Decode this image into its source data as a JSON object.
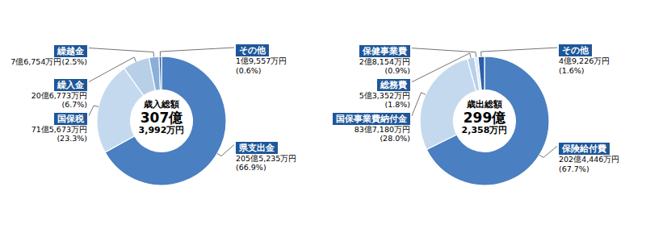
{
  "chart_data": [
    {
      "type": "donut",
      "title": [
        "歳入総額",
        "307億",
        "3,992万円"
      ],
      "categories": [
        "県支出金",
        "国保税",
        "繰入金",
        "繰越金",
        "その他"
      ],
      "values": [
        66.9,
        23.3,
        6.7,
        2.5,
        0.6
      ],
      "colors": [
        "#4a7fc1",
        "#c5d9ee",
        "#b8cfe8",
        "#8aafd8",
        "#2a5ea8"
      ],
      "value_labels": [
        [
          "205億5,235万円",
          "(66.9%)"
        ],
        [
          "71億5,673万円",
          "(23.3%)"
        ],
        [
          "20億6,773万円",
          "(6.7%)"
        ],
        [
          "7億6,754万円(2.5%)"
        ],
        [
          "1億9,557万円",
          "(0.6%)"
        ]
      ]
    },
    {
      "type": "donut",
      "title": [
        "歳出総額",
        "299億",
        "2,358万円"
      ],
      "categories": [
        "保険給付費",
        "国保事業費納付金",
        "総務費",
        "保健事業費",
        "その他"
      ],
      "values": [
        67.7,
        28.0,
        1.8,
        0.9,
        1.6
      ],
      "colors": [
        "#4a7fc1",
        "#c5d9ee",
        "#b8cfe8",
        "#ddeaf6",
        "#2a5ea8"
      ],
      "value_labels": [
        [
          "202億4,446万円",
          "(67.7%)"
        ],
        [
          "83億7,180万円",
          "(28.0%)"
        ],
        [
          "5億3,352万円",
          "(1.8%)"
        ],
        [
          "2億8,154万円",
          "(0.9%)"
        ],
        [
          "4億9,226万円",
          "(1.6%)"
        ]
      ]
    }
  ]
}
